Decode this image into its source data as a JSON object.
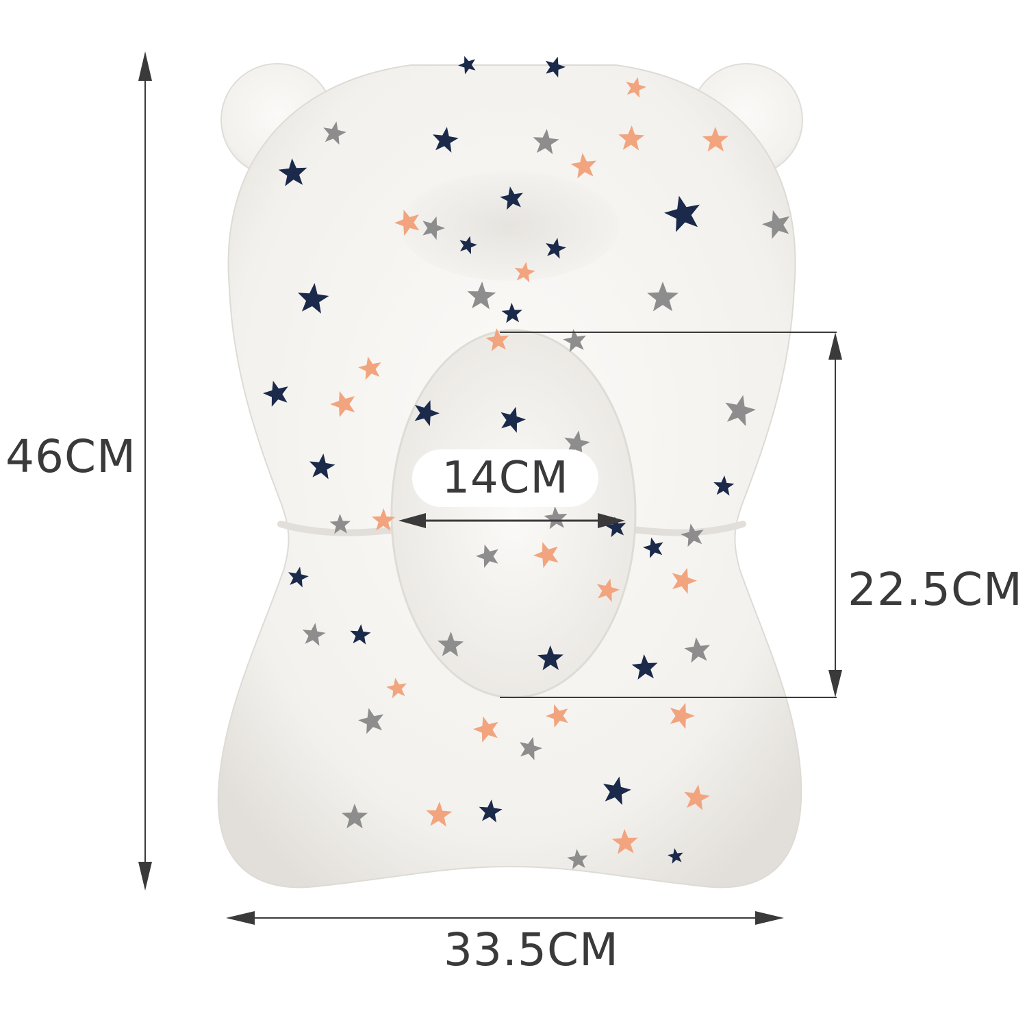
{
  "dimensions": {
    "total_height": "46CM",
    "total_width": "33.5CM",
    "seat_width": "14CM",
    "back_height": "22.5CM"
  },
  "colors": {
    "background": "#ffffff",
    "cushion": "#f5f4f1",
    "cushion_shade": "#e4e1dc",
    "star_navy": "#1b2a4a",
    "star_gray": "#8d8d8d",
    "star_peach": "#f2a47e",
    "dimension_lines": "#3a3a3a"
  }
}
